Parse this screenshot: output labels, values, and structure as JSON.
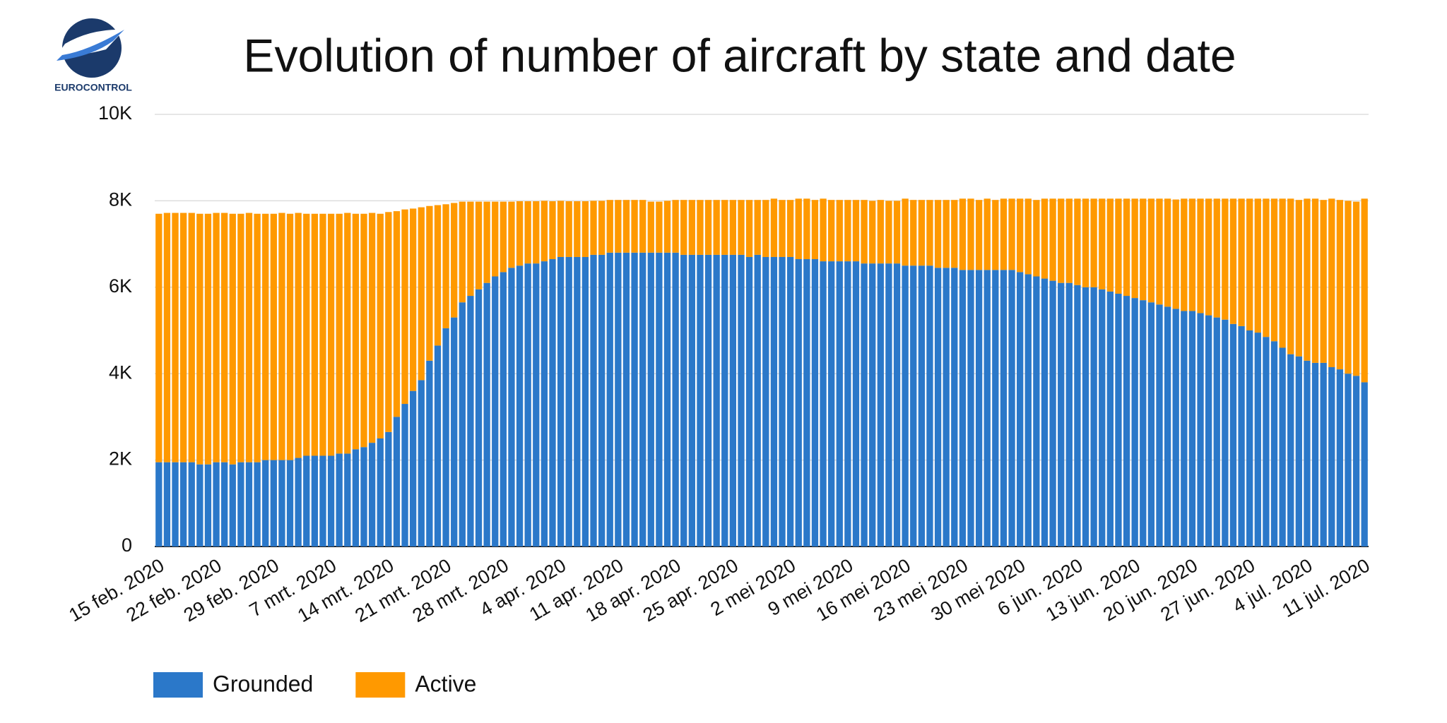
{
  "logo_text": "EUROCONTROL",
  "chart_data": {
    "type": "stacked_bar",
    "title": "Evolution of number of aircraft by state and date",
    "categories": [
      "15 feb. 2020",
      null,
      null,
      null,
      null,
      null,
      null,
      "22 feb. 2020",
      null,
      null,
      null,
      null,
      null,
      null,
      "29 feb. 2020",
      null,
      null,
      null,
      null,
      null,
      null,
      "7 mrt. 2020",
      null,
      null,
      null,
      null,
      null,
      null,
      "14 mrt. 2020",
      null,
      null,
      null,
      null,
      null,
      null,
      "21 mrt. 2020",
      null,
      null,
      null,
      null,
      null,
      null,
      "28 mrt. 2020",
      null,
      null,
      null,
      null,
      null,
      null,
      "4 apr. 2020",
      null,
      null,
      null,
      null,
      null,
      null,
      "11 apr. 2020",
      null,
      null,
      null,
      null,
      null,
      null,
      "18 apr. 2020",
      null,
      null,
      null,
      null,
      null,
      null,
      "25 apr. 2020",
      null,
      null,
      null,
      null,
      null,
      null,
      "2 mei 2020",
      null,
      null,
      null,
      null,
      null,
      null,
      "9 mei 2020",
      null,
      null,
      null,
      null,
      null,
      null,
      "16 mei 2020",
      null,
      null,
      null,
      null,
      null,
      null,
      "23 mei 2020",
      null,
      null,
      null,
      null,
      null,
      null,
      "30 mei 2020",
      null,
      null,
      null,
      null,
      null,
      null,
      "6 jun. 2020",
      null,
      null,
      null,
      null,
      null,
      null,
      "13 jun. 2020",
      null,
      null,
      null,
      null,
      null,
      null,
      "20 jun. 2020",
      null,
      null,
      null,
      null,
      null,
      null,
      "27 jun. 2020",
      null,
      null,
      null,
      null,
      null,
      null,
      "4 jul. 2020",
      null,
      null,
      null,
      null,
      null,
      null,
      "11 jul. 2020"
    ],
    "series": [
      {
        "name": "Grounded",
        "color": "#2b78c9",
        "values": [
          1950,
          1950,
          1950,
          1950,
          1950,
          1900,
          1900,
          1950,
          1950,
          1900,
          1950,
          1950,
          1950,
          2000,
          2000,
          2000,
          2000,
          2050,
          2100,
          2100,
          2100,
          2100,
          2150,
          2150,
          2250,
          2300,
          2400,
          2500,
          2650,
          3000,
          3300,
          3600,
          3850,
          4300,
          4650,
          5050,
          5300,
          5650,
          5800,
          5950,
          6100,
          6250,
          6350,
          6450,
          6500,
          6550,
          6550,
          6600,
          6650,
          6700,
          6700,
          6700,
          6700,
          6750,
          6750,
          6800,
          6800,
          6800,
          6800,
          6800,
          6800,
          6800,
          6800,
          6800,
          6750,
          6750,
          6750,
          6750,
          6750,
          6750,
          6750,
          6750,
          6700,
          6750,
          6700,
          6700,
          6700,
          6700,
          6650,
          6650,
          6650,
          6600,
          6600,
          6600,
          6600,
          6600,
          6550,
          6550,
          6550,
          6550,
          6550,
          6500,
          6500,
          6500,
          6500,
          6450,
          6450,
          6450,
          6400,
          6400,
          6400,
          6400,
          6400,
          6400,
          6400,
          6350,
          6300,
          6250,
          6200,
          6150,
          6100,
          6100,
          6050,
          6000,
          6000,
          5950,
          5900,
          5850,
          5800,
          5750,
          5700,
          5650,
          5600,
          5550,
          5500,
          5450,
          5450,
          5400,
          5350,
          5300,
          5250,
          5150,
          5100,
          5000,
          4950,
          4850,
          4750,
          4600,
          4450,
          4400,
          4300,
          4250,
          4250,
          4150,
          4100,
          4000,
          3950,
          3800
        ]
      },
      {
        "name": "Active",
        "color": "#ff9900",
        "values": [
          5750,
          5770,
          5770,
          5770,
          5770,
          5800,
          5800,
          5770,
          5770,
          5800,
          5750,
          5770,
          5750,
          5700,
          5700,
          5720,
          5700,
          5670,
          5600,
          5600,
          5600,
          5600,
          5550,
          5570,
          5450,
          5400,
          5320,
          5200,
          5090,
          4760,
          4500,
          4220,
          4000,
          3580,
          3250,
          2870,
          2650,
          2330,
          2180,
          2030,
          1880,
          1730,
          1630,
          1530,
          1490,
          1440,
          1440,
          1400,
          1340,
          1300,
          1290,
          1290,
          1290,
          1250,
          1250,
          1220,
          1220,
          1220,
          1220,
          1220,
          1180,
          1180,
          1200,
          1220,
          1270,
          1270,
          1270,
          1270,
          1270,
          1270,
          1270,
          1270,
          1320,
          1270,
          1320,
          1350,
          1320,
          1320,
          1400,
          1400,
          1370,
          1450,
          1420,
          1420,
          1420,
          1420,
          1470,
          1450,
          1470,
          1450,
          1450,
          1550,
          1520,
          1520,
          1520,
          1570,
          1570,
          1570,
          1650,
          1650,
          1620,
          1650,
          1620,
          1650,
          1650,
          1700,
          1750,
          1770,
          1850,
          1900,
          1950,
          1950,
          2000,
          2050,
          2050,
          2100,
          2150,
          2200,
          2250,
          2300,
          2350,
          2400,
          2450,
          2500,
          2530,
          2600,
          2600,
          2650,
          2700,
          2750,
          2800,
          2900,
          2950,
          3050,
          3100,
          3200,
          3300,
          3450,
          3600,
          3620,
          3750,
          3800,
          3770,
          3900,
          3920,
          4000,
          4030,
          4250
        ]
      }
    ],
    "ylim": [
      0,
      10000
    ],
    "yticks": [
      0,
      {
        "value": 2000,
        "label": "2K"
      },
      {
        "value": 4000,
        "label": "4K"
      },
      {
        "value": 6000,
        "label": "6K"
      },
      {
        "value": 8000,
        "label": "8K"
      },
      {
        "value": 10000,
        "label": "10K"
      }
    ],
    "grid": true
  }
}
